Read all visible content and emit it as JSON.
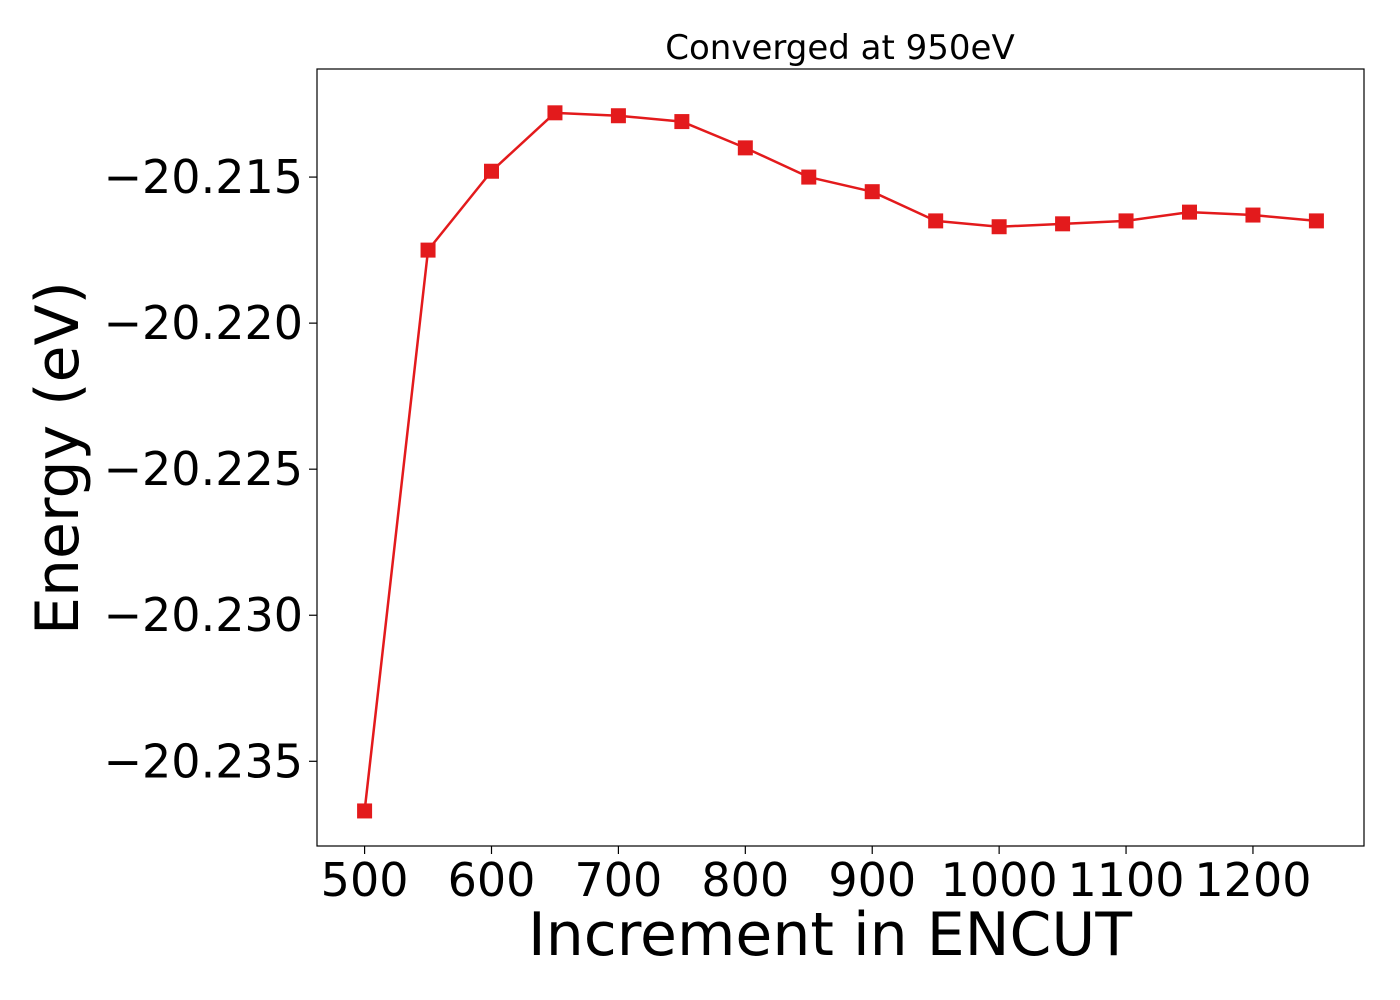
{
  "chart_data": {
    "type": "line",
    "title": "Converged at 950eV",
    "xlabel": "Increment in ENCUT",
    "ylabel": "Energy (eV)",
    "x": [
      500,
      550,
      600,
      650,
      700,
      750,
      800,
      850,
      900,
      950,
      1000,
      1050,
      1100,
      1150,
      1200,
      1250
    ],
    "series": [
      {
        "values": [
          -20.2367,
          -20.2175,
          -20.2148,
          -20.2128,
          -20.2129,
          -20.2131,
          -20.214,
          -20.215,
          -20.2155,
          -20.2165,
          -20.2167,
          -20.2166,
          -20.2165,
          -20.2162,
          -20.2163,
          -20.2165
        ],
        "color": "#e31a1c",
        "marker": "square"
      }
    ],
    "xticks": [
      500,
      600,
      700,
      800,
      900,
      1000,
      1100,
      1200
    ],
    "xtick_labels": [
      "500",
      "600",
      "700",
      "800",
      "900",
      "1000",
      "1100",
      "1200"
    ],
    "yticks": [
      -20.215,
      -20.22,
      -20.225,
      -20.23,
      -20.235
    ],
    "ytick_labels": [
      "−20.215",
      "−20.220",
      "−20.225",
      "−20.230",
      "−20.235"
    ],
    "xlim": [
      462.5,
      1287.5
    ],
    "ylim": [
      -20.2379,
      -20.2113
    ],
    "grid": false,
    "legend": false
  }
}
